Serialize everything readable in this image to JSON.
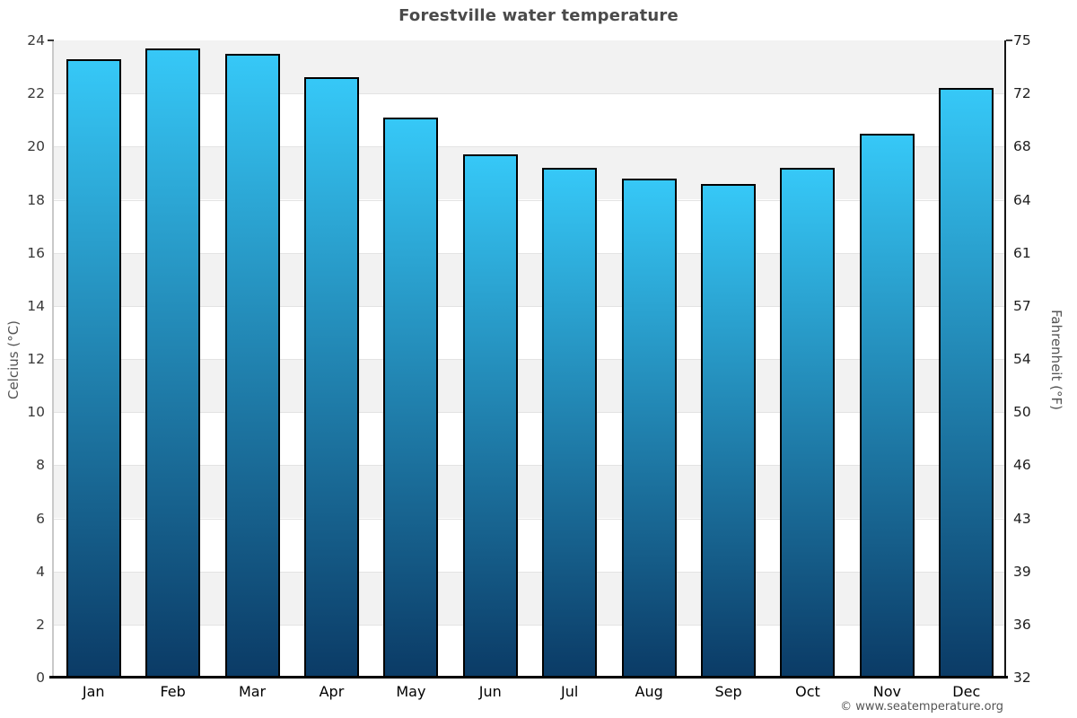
{
  "header": {
    "title": "Forestville water temperature"
  },
  "footer": {
    "copyright": "© www.seatemperature.org"
  },
  "chart_data": {
    "type": "bar",
    "title": "Forestville water temperature",
    "categories": [
      "Jan",
      "Feb",
      "Mar",
      "Apr",
      "May",
      "Jun",
      "Jul",
      "Aug",
      "Sep",
      "Oct",
      "Nov",
      "Dec"
    ],
    "series": [
      {
        "name": "Water temperature",
        "unit": "°C",
        "values": [
          23.3,
          23.7,
          23.5,
          22.6,
          21.1,
          19.7,
          19.2,
          18.8,
          18.6,
          19.2,
          20.5,
          22.2
        ]
      }
    ],
    "xlabel": "",
    "ylabel_left": "Celcius (°C)",
    "ylabel_right": "Fahrenheit (°F)",
    "ylim": [
      0,
      24
    ],
    "yticks_left": [
      "0",
      "2",
      "4",
      "6",
      "8",
      "10",
      "12",
      "14",
      "16",
      "18",
      "20",
      "22",
      "24"
    ],
    "yticks_right": [
      "32",
      "36",
      "39",
      "43",
      "46",
      "50",
      "54",
      "57",
      "61",
      "64",
      "68",
      "72",
      "75"
    ],
    "grid": "alternating horizontal bands, band step 2°C, gray band at top",
    "legend": "none",
    "colors": {
      "bar_gradient_top": "#36c8f7",
      "bar_gradient_bottom": "#0b3b66",
      "bar_border": "#000000",
      "band_gray": "#f2f2f2",
      "band_white": "#ffffff",
      "gridline": "#e3e3e3",
      "title_text": "#4a4a4a",
      "tick_text_left": "#383838",
      "tick_text_right": "#1d1d1d",
      "axis_title_text": "#555555",
      "footer_text": "#555555"
    }
  }
}
